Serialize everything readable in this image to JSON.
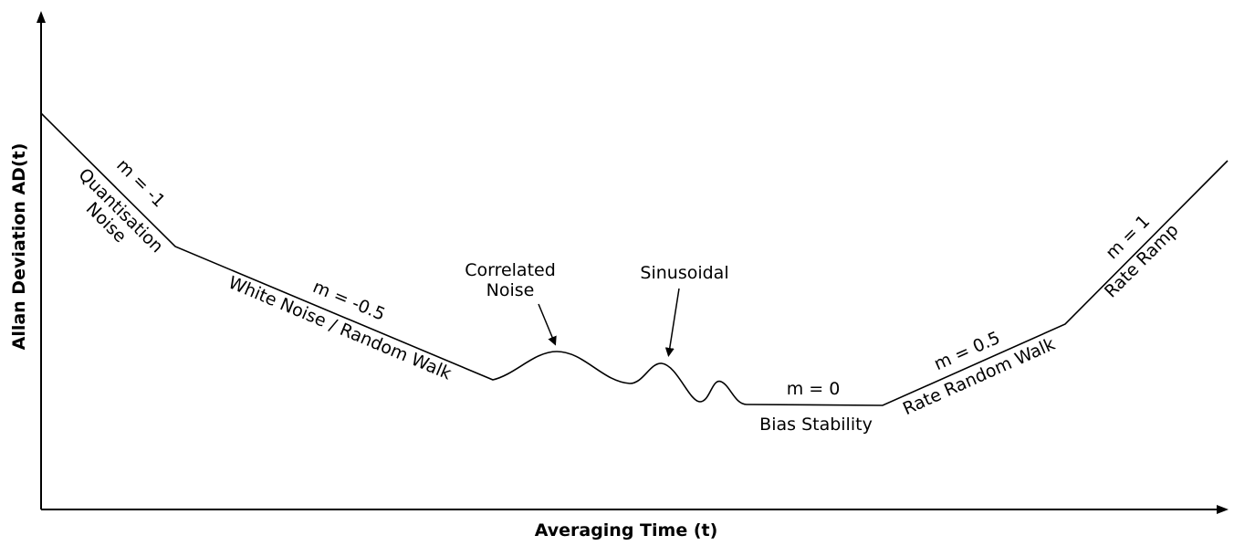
{
  "axes": {
    "x_label": "Averaging Time (t)",
    "y_label": "Allan Deviation AD(t)"
  },
  "segments": {
    "quantisation": {
      "slope": "m = -1",
      "name_line1": "Quantisation",
      "name_line2": "Noise"
    },
    "white_noise": {
      "slope": "m = -0.5",
      "name": "White Noise / Random Walk"
    },
    "correlated": {
      "name_line1": "Correlated",
      "name_line2": "Noise"
    },
    "sinusoidal": {
      "name": "Sinusoidal"
    },
    "bias": {
      "slope": "m = 0",
      "name": "Bias Stability"
    },
    "rate_random_walk": {
      "slope": "m = 0.5",
      "name": "Rate Random Walk"
    },
    "rate_ramp": {
      "slope": "m = 1",
      "name": "Rate Ramp"
    }
  }
}
